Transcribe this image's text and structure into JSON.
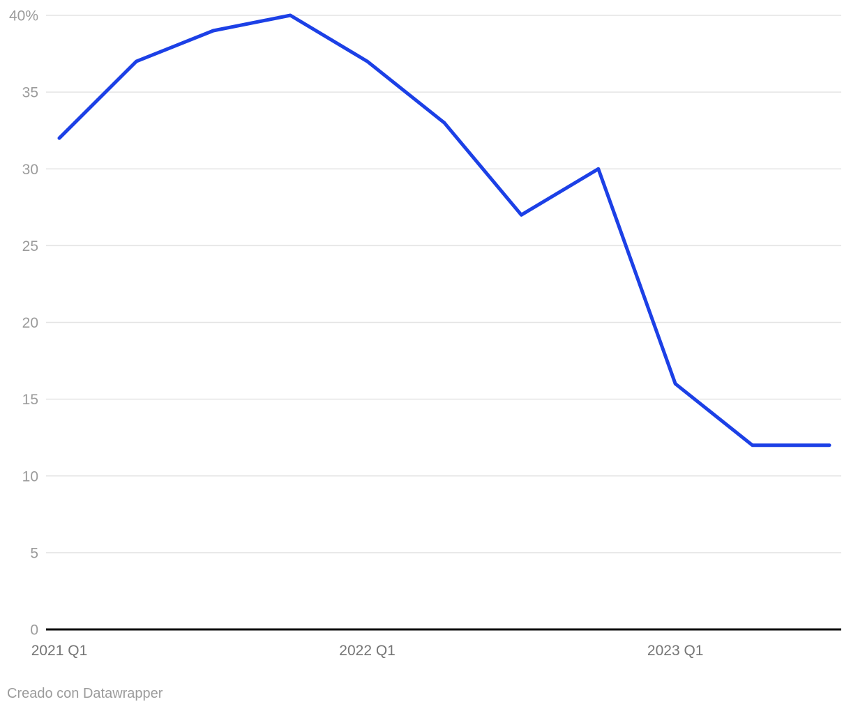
{
  "chart_data": {
    "type": "line",
    "x": [
      "2021 Q1",
      "2021 Q2",
      "2021 Q3",
      "2021 Q4",
      "2022 Q1",
      "2022 Q2",
      "2022 Q3",
      "2022 Q4",
      "2023 Q1",
      "2023 Q2",
      "2023 Q3"
    ],
    "values": [
      32,
      37,
      39,
      40,
      37,
      33,
      27,
      30,
      16,
      12,
      12
    ],
    "ylim": [
      0,
      40
    ],
    "y_ticks": [
      0,
      5,
      10,
      15,
      20,
      25,
      30,
      35,
      40
    ],
    "y_tick_labels": [
      "0",
      "5",
      "10",
      "15",
      "20",
      "25",
      "30",
      "35",
      "40%"
    ],
    "x_ticks": [
      {
        "label": "2021 Q1",
        "index": 0
      },
      {
        "label": "2022 Q1",
        "index": 4
      },
      {
        "label": "2023 Q1",
        "index": 8
      }
    ],
    "line_color": "#1C40E6",
    "grid": true,
    "legend_position": "none",
    "colors": {
      "gridline": "#e4e4e4",
      "axis_baseline": "#000000",
      "y_tick_label": "#9b9b9b",
      "x_tick_label": "#757575"
    }
  },
  "footer": {
    "attribution": "Creado con Datawrapper"
  }
}
